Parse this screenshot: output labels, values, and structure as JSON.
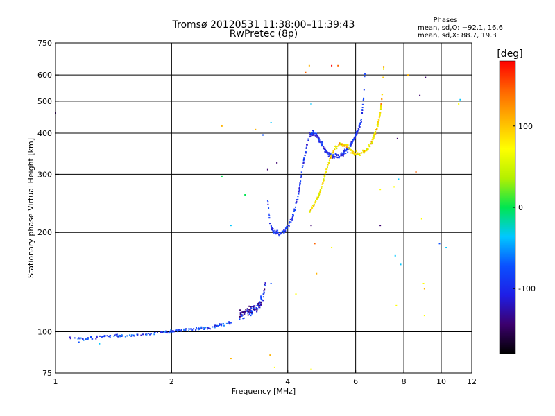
{
  "chart_data": {
    "type": "scatter",
    "title": "Tromsø 20120531 11:38:00–11:39:43",
    "subtitle": "RwPretec (8p)",
    "phases_box": {
      "heading": "Phases",
      "line1": "mean, sd,O: −92.1, 16.6",
      "line2": "mean, sd,X:  88.7, 19.3"
    },
    "xlabel": "Frequency [MHz]",
    "ylabel": "Stationary phase Virtual Height [km]",
    "x_scale": "log",
    "y_scale": "log",
    "xlim": [
      1,
      12
    ],
    "ylim": [
      75,
      750
    ],
    "x_ticks": [
      1,
      2,
      4,
      6,
      8,
      10,
      12
    ],
    "y_ticks": [
      75,
      100,
      200,
      300,
      400,
      500,
      600,
      750
    ],
    "grid": true,
    "colorbar": {
      "label": "[deg]",
      "range": [
        -180,
        180
      ],
      "ticks": [
        100,
        0,
        -100
      ],
      "colors": [
        "#000000",
        "#3c006e",
        "#1e1ee6",
        "#0a50ff",
        "#00c8ff",
        "#00e650",
        "#b4f000",
        "#ffff00",
        "#ffb400",
        "#ff6400",
        "#ff0000"
      ]
    },
    "series": [
      {
        "mode": "O",
        "phase_mean": -92.1,
        "color": "#1e3cf0",
        "segments": [
          {
            "x": [
              1.08,
              1.2,
              1.35,
              1.5,
              1.65,
              1.8,
              1.95,
              2.1,
              2.3,
              2.5,
              2.7,
              2.9
            ],
            "y": [
              96,
              95,
              97,
              97,
              98,
              99,
              100,
              101,
              102,
              103,
              105,
              107
            ],
            "spread": 0.015,
            "n": 170
          },
          {
            "x": [
              3.0,
              3.15,
              3.3,
              3.45,
              3.5
            ],
            "y": [
              113,
              115,
              118,
              125,
              140
            ],
            "spread": 0.05,
            "n": 110
          },
          {
            "x": [
              3.55,
              3.6,
              3.7,
              3.82,
              3.95,
              4.1,
              4.25,
              4.4,
              4.55,
              4.7,
              4.85,
              5.0,
              5.2,
              5.45,
              5.7,
              5.95,
              6.2,
              6.3,
              6.35
            ],
            "y": [
              250,
              210,
              200,
              198,
              203,
              218,
              255,
              330,
              395,
              400,
              380,
              355,
              340,
              340,
              355,
              385,
              430,
              520,
              640
            ],
            "spread": 0.025,
            "n": 340
          }
        ]
      },
      {
        "mode": "X",
        "phase_mean": 88.7,
        "color": "#e6e600",
        "segments": [
          {
            "x": [
              4.55,
              4.7,
              4.85,
              5.0,
              5.15,
              5.3,
              5.45,
              5.65,
              5.9,
              6.15,
              6.4,
              6.6,
              6.8,
              6.95,
              7.05,
              7.1
            ],
            "y": [
              230,
              245,
              265,
              300,
              335,
              360,
              370,
              368,
              350,
              345,
              355,
              375,
              410,
              460,
              540,
              650
            ],
            "spread": 0.02,
            "n": 230
          }
        ]
      }
    ],
    "outliers": [
      {
        "x": 1.0,
        "y": 460,
        "c": "#3c006e"
      },
      {
        "x": 2.7,
        "y": 420,
        "c": "#ffb400"
      },
      {
        "x": 2.7,
        "y": 295,
        "c": "#00e650"
      },
      {
        "x": 2.85,
        "y": 210,
        "c": "#00c8ff"
      },
      {
        "x": 3.1,
        "y": 260,
        "c": "#00e650"
      },
      {
        "x": 3.3,
        "y": 410,
        "c": "#ffb400"
      },
      {
        "x": 3.45,
        "y": 395,
        "c": "#0a50ff"
      },
      {
        "x": 3.55,
        "y": 310,
        "c": "#3c006e"
      },
      {
        "x": 3.62,
        "y": 430,
        "c": "#00c8ff"
      },
      {
        "x": 3.75,
        "y": 325,
        "c": "#3c006e"
      },
      {
        "x": 3.62,
        "y": 140,
        "c": "#0a50ff"
      },
      {
        "x": 3.6,
        "y": 85,
        "c": "#ffb400"
      },
      {
        "x": 3.7,
        "y": 78,
        "c": "#ffff00"
      },
      {
        "x": 2.85,
        "y": 83,
        "c": "#ffb400"
      },
      {
        "x": 4.2,
        "y": 130,
        "c": "#ffff00"
      },
      {
        "x": 4.45,
        "y": 610,
        "c": "#ff6400"
      },
      {
        "x": 4.55,
        "y": 640,
        "c": "#ffb400"
      },
      {
        "x": 4.6,
        "y": 490,
        "c": "#00c8ff"
      },
      {
        "x": 4.6,
        "y": 210,
        "c": "#3c006e"
      },
      {
        "x": 4.7,
        "y": 185,
        "c": "#ff6400"
      },
      {
        "x": 4.75,
        "y": 150,
        "c": "#ffb400"
      },
      {
        "x": 5.2,
        "y": 640,
        "c": "#ff0000"
      },
      {
        "x": 5.4,
        "y": 640,
        "c": "#ff6400"
      },
      {
        "x": 5.2,
        "y": 180,
        "c": "#ffff00"
      },
      {
        "x": 4.6,
        "y": 77,
        "c": "#ffff00"
      },
      {
        "x": 6.95,
        "y": 210,
        "c": "#3c006e"
      },
      {
        "x": 6.95,
        "y": 270,
        "c": "#ffff00"
      },
      {
        "x": 7.7,
        "y": 385,
        "c": "#3c006e"
      },
      {
        "x": 7.65,
        "y": 120,
        "c": "#ffff00"
      },
      {
        "x": 7.6,
        "y": 170,
        "c": "#00c8ff"
      },
      {
        "x": 7.55,
        "y": 275,
        "c": "#ffff00"
      },
      {
        "x": 7.75,
        "y": 290,
        "c": "#00c8ff"
      },
      {
        "x": 7.85,
        "y": 160,
        "c": "#00c8ff"
      },
      {
        "x": 8.2,
        "y": 600,
        "c": "#ffb400"
      },
      {
        "x": 8.6,
        "y": 305,
        "c": "#ff6400"
      },
      {
        "x": 8.8,
        "y": 520,
        "c": "#3c006e"
      },
      {
        "x": 8.9,
        "y": 220,
        "c": "#ffff00"
      },
      {
        "x": 9.1,
        "y": 590,
        "c": "#3c006e"
      },
      {
        "x": 9.0,
        "y": 140,
        "c": "#ffff00"
      },
      {
        "x": 9.05,
        "y": 135,
        "c": "#ffb400"
      },
      {
        "x": 9.05,
        "y": 112,
        "c": "#ffff00"
      },
      {
        "x": 9.9,
        "y": 185,
        "c": "#0a50ff"
      },
      {
        "x": 10.3,
        "y": 180,
        "c": "#00c8ff"
      },
      {
        "x": 11.2,
        "y": 505,
        "c": "#00c8ff"
      },
      {
        "x": 11.1,
        "y": 490,
        "c": "#ffff00"
      },
      {
        "x": 1.15,
        "y": 93,
        "c": "#0a50ff"
      },
      {
        "x": 1.3,
        "y": 92,
        "c": "#00c8ff"
      }
    ]
  }
}
